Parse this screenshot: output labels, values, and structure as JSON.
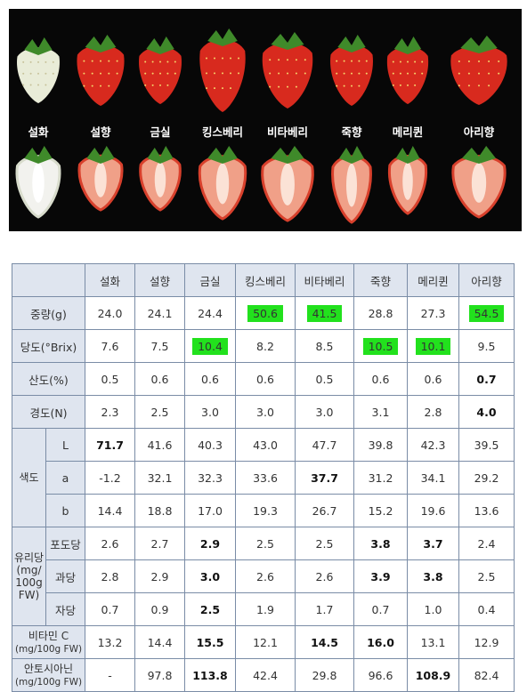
{
  "photo_labels": [
    "설화",
    "설향",
    "금실",
    "킹스베리",
    "비타베리",
    "죽향",
    "메리퀸",
    "아리향"
  ],
  "table": {
    "columns": [
      "설화",
      "설향",
      "금실",
      "킹스베리",
      "비타베리",
      "죽향",
      "메리퀸",
      "아리향"
    ],
    "rows": [
      {
        "label": "중량(g)",
        "values": [
          "24.0",
          "24.1",
          "24.4",
          "50.6",
          "41.5",
          "28.8",
          "27.3",
          "54.5"
        ],
        "highlight": [
          3,
          4,
          7
        ]
      },
      {
        "label": "당도(°Brix)",
        "values": [
          "7.6",
          "7.5",
          "10.4",
          "8.2",
          "8.5",
          "10.5",
          "10.1",
          "9.5"
        ],
        "highlight": [
          2,
          5,
          6
        ]
      },
      {
        "label": "산도(%)",
        "values": [
          "0.5",
          "0.6",
          "0.6",
          "0.6",
          "0.5",
          "0.6",
          "0.6",
          "0.7"
        ],
        "bold": [
          7
        ]
      },
      {
        "label": "경도(N)",
        "values": [
          "2.3",
          "2.5",
          "3.0",
          "3.0",
          "3.0",
          "3.1",
          "2.8",
          "4.0"
        ],
        "bold": [
          7
        ]
      },
      {
        "group": "색도",
        "sub": "L",
        "values": [
          "71.7",
          "41.6",
          "40.3",
          "43.0",
          "47.7",
          "39.8",
          "42.3",
          "39.5"
        ],
        "bold": [
          0
        ]
      },
      {
        "group": "색도",
        "sub": "a",
        "values": [
          "-1.2",
          "32.1",
          "32.3",
          "33.6",
          "37.7",
          "31.2",
          "34.1",
          "29.2"
        ],
        "bold": [
          4
        ]
      },
      {
        "group": "색도",
        "sub": "b",
        "values": [
          "14.4",
          "18.8",
          "17.0",
          "19.3",
          "26.7",
          "15.2",
          "19.6",
          "13.6"
        ]
      },
      {
        "group": "유리당\n(mg/\n100g\nFW)",
        "sub": "포도당",
        "values": [
          "2.6",
          "2.7",
          "2.9",
          "2.5",
          "2.5",
          "3.8",
          "3.7",
          "2.4"
        ],
        "bold": [
          2,
          5,
          6
        ]
      },
      {
        "group": "유리당\n(mg/\n100g\nFW)",
        "sub": "과당",
        "values": [
          "2.8",
          "2.9",
          "3.0",
          "2.6",
          "2.6",
          "3.9",
          "3.8",
          "2.5"
        ],
        "bold": [
          2,
          5,
          6
        ]
      },
      {
        "group": "유리당\n(mg/\n100g\nFW)",
        "sub": "자당",
        "values": [
          "0.7",
          "0.9",
          "2.5",
          "1.9",
          "1.7",
          "0.7",
          "1.0",
          "0.4"
        ],
        "bold": [
          2
        ]
      },
      {
        "label": "비타민 C\n(mg/100g FW)",
        "values": [
          "13.2",
          "14.4",
          "15.5",
          "12.1",
          "14.5",
          "16.0",
          "13.1",
          "12.9"
        ],
        "bold": [
          2,
          4,
          5
        ]
      },
      {
        "label": "안토시아닌\n(mg/100g FW)",
        "values": [
          "-",
          "97.8",
          "113.8",
          "42.4",
          "29.8",
          "96.6",
          "108.9",
          "82.4"
        ],
        "bold": [
          2,
          6
        ]
      }
    ]
  },
  "colors": {
    "highlight": "#22e11d",
    "header_bg": "#dfe5ef",
    "border": "#7a8ca6",
    "photo_bg": "#070707"
  }
}
